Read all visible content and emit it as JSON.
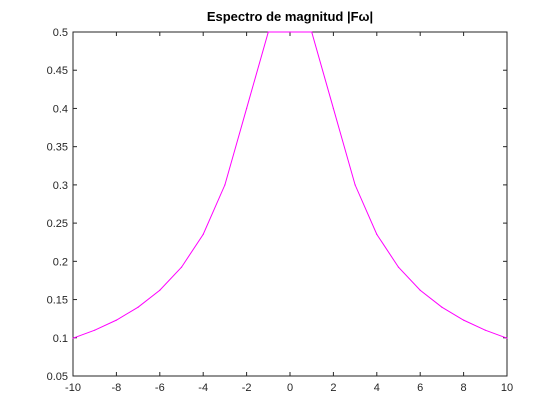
{
  "chart_data": {
    "type": "line",
    "title": "Espectro de magnitud |Fω|",
    "xlabel": "",
    "ylabel": "",
    "xlim": [
      -10,
      10
    ],
    "ylim": [
      0.05,
      0.5
    ],
    "x_ticks": [
      -10,
      -8,
      -6,
      -4,
      -2,
      0,
      2,
      4,
      6,
      8,
      10
    ],
    "y_ticks": [
      0.05,
      0.1,
      0.15,
      0.2,
      0.25,
      0.3,
      0.35,
      0.4,
      0.45,
      0.5
    ],
    "x_tick_labels": [
      "-10",
      "-8",
      "-6",
      "-4",
      "-2",
      "0",
      "2",
      "4",
      "6",
      "8",
      "10"
    ],
    "y_tick_labels": [
      "0.05",
      "0.1",
      "0.15",
      "0.2",
      "0.25",
      "0.3",
      "0.35",
      "0.4",
      "0.45",
      "0.5"
    ],
    "grid": false,
    "series": [
      {
        "color": "#ff00ff",
        "x": [
          -10,
          -9,
          -8,
          -7,
          -6,
          -5,
          -4,
          -3,
          -2,
          -1,
          0,
          1,
          2,
          3,
          4,
          5,
          6,
          7,
          8,
          9,
          10
        ],
        "y": [
          0.0995,
          0.1099,
          0.1231,
          0.14,
          0.1622,
          0.1923,
          0.2353,
          0.3,
          0.4,
          0.5,
          0.5,
          0.5,
          0.4,
          0.3,
          0.2353,
          0.1923,
          0.1622,
          0.14,
          0.1231,
          0.1099,
          0.0995
        ]
      }
    ]
  }
}
